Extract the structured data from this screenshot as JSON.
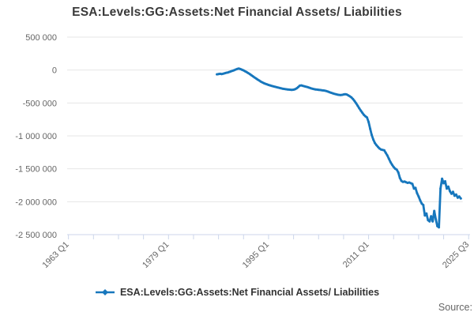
{
  "title": "ESA:Levels:GG:Assets:Net Financial Assets/ Liabilities",
  "footer": {
    "source_label": "Source:"
  },
  "chart_data": {
    "type": "line",
    "title": "ESA:Levels:GG:Assets:Net Financial Assets/ Liabilities",
    "xlabel": "",
    "ylabel": "",
    "grid": "horizontal",
    "legend_position": "bottom-center",
    "colors": {
      "line": "#1777bd",
      "grid": "#e6e6e6",
      "axis": "#ccd6eb",
      "label": "#666666",
      "title": "#3a3a3a"
    },
    "x_axis": {
      "min_year": 1963,
      "tick_interval_years": 4,
      "tick_count": 17,
      "labeled_ticks": [
        {
          "index": 0,
          "label": "1963 Q1"
        },
        {
          "index": 4,
          "label": "1979 Q1"
        },
        {
          "index": 8,
          "label": "1995 Q1"
        },
        {
          "index": 12,
          "label": "2011 Q1"
        },
        {
          "index": 16,
          "label": "2025 Q3"
        }
      ]
    },
    "y_axis": {
      "min": -2500000,
      "max": 500000,
      "tick_values": [
        500000,
        0,
        -500000,
        -1000000,
        -1500000,
        -2000000,
        -2500000
      ],
      "tick_labels": [
        "500 000",
        "0",
        "-500 000",
        "-1 000 000",
        "-1 500 000",
        "-2 000 000",
        "-2 500 000"
      ]
    },
    "series": [
      {
        "name": "ESA:Levels:GG:Assets:Net Financial Assets/ Liabilities",
        "points": [
          [
            1986.75,
            -65000
          ],
          [
            1987,
            -60000
          ],
          [
            1987.25,
            -57000
          ],
          [
            1987.5,
            -62000
          ],
          [
            1987.75,
            -56000
          ],
          [
            1988,
            -48000
          ],
          [
            1988.25,
            -41000
          ],
          [
            1988.5,
            -36000
          ],
          [
            1988.75,
            -28000
          ],
          [
            1989,
            -20000
          ],
          [
            1989.25,
            -11000
          ],
          [
            1989.5,
            -3000
          ],
          [
            1989.75,
            8000
          ],
          [
            1990,
            18000
          ],
          [
            1990.25,
            22000
          ],
          [
            1990.5,
            15000
          ],
          [
            1990.75,
            5000
          ],
          [
            1991,
            -5000
          ],
          [
            1991.25,
            -19000
          ],
          [
            1991.5,
            -32000
          ],
          [
            1991.75,
            -46000
          ],
          [
            1992,
            -61000
          ],
          [
            1992.25,
            -78000
          ],
          [
            1992.5,
            -95000
          ],
          [
            1992.75,
            -112000
          ],
          [
            1993,
            -128000
          ],
          [
            1993.25,
            -144000
          ],
          [
            1993.5,
            -159000
          ],
          [
            1993.75,
            -174000
          ],
          [
            1994,
            -187000
          ],
          [
            1994.25,
            -199000
          ],
          [
            1994.5,
            -209000
          ],
          [
            1994.75,
            -218000
          ],
          [
            1995,
            -226000
          ],
          [
            1995.25,
            -233000
          ],
          [
            1995.5,
            -240000
          ],
          [
            1995.75,
            -247000
          ],
          [
            1996,
            -254000
          ],
          [
            1996.25,
            -260000
          ],
          [
            1996.5,
            -266000
          ],
          [
            1996.75,
            -271000
          ],
          [
            1997,
            -277000
          ],
          [
            1997.25,
            -283000
          ],
          [
            1997.5,
            -287000
          ],
          [
            1997.75,
            -291000
          ],
          [
            1998,
            -294000
          ],
          [
            1998.25,
            -297000
          ],
          [
            1998.5,
            -299000
          ],
          [
            1998.75,
            -301000
          ],
          [
            1999,
            -298000
          ],
          [
            1999.25,
            -291000
          ],
          [
            1999.5,
            -278000
          ],
          [
            1999.75,
            -258000
          ],
          [
            2000,
            -237000
          ],
          [
            2000.25,
            -233000
          ],
          [
            2000.5,
            -240000
          ],
          [
            2000.75,
            -247000
          ],
          [
            2001,
            -253000
          ],
          [
            2001.25,
            -260000
          ],
          [
            2001.5,
            -268000
          ],
          [
            2001.75,
            -276000
          ],
          [
            2002,
            -283000
          ],
          [
            2002.25,
            -289000
          ],
          [
            2002.5,
            -294000
          ],
          [
            2002.75,
            -297000
          ],
          [
            2003,
            -300000
          ],
          [
            2003.25,
            -303000
          ],
          [
            2003.5,
            -306000
          ],
          [
            2003.75,
            -310000
          ],
          [
            2004,
            -314000
          ],
          [
            2004.25,
            -320000
          ],
          [
            2004.5,
            -327000
          ],
          [
            2004.75,
            -336000
          ],
          [
            2005,
            -345000
          ],
          [
            2005.25,
            -353000
          ],
          [
            2005.5,
            -360000
          ],
          [
            2005.75,
            -366000
          ],
          [
            2006,
            -372000
          ],
          [
            2006.25,
            -377000
          ],
          [
            2006.5,
            -380000
          ],
          [
            2006.75,
            -377000
          ],
          [
            2007,
            -371000
          ],
          [
            2007.25,
            -367000
          ],
          [
            2007.5,
            -371000
          ],
          [
            2007.75,
            -384000
          ],
          [
            2008,
            -399000
          ],
          [
            2008.25,
            -416000
          ],
          [
            2008.5,
            -441000
          ],
          [
            2008.75,
            -471000
          ],
          [
            2009,
            -506000
          ],
          [
            2009.25,
            -542000
          ],
          [
            2009.5,
            -580000
          ],
          [
            2009.75,
            -616000
          ],
          [
            2010,
            -650000
          ],
          [
            2010.25,
            -681000
          ],
          [
            2010.5,
            -703000
          ],
          [
            2010.75,
            -722000
          ],
          [
            2011,
            -790000
          ],
          [
            2011.25,
            -893000
          ],
          [
            2011.5,
            -985000
          ],
          [
            2011.75,
            -1055000
          ],
          [
            2012,
            -1108000
          ],
          [
            2012.25,
            -1140000
          ],
          [
            2012.5,
            -1168000
          ],
          [
            2012.75,
            -1192000
          ],
          [
            2013,
            -1208000
          ],
          [
            2013.25,
            -1214000
          ],
          [
            2013.5,
            -1219000
          ],
          [
            2013.75,
            -1258000
          ],
          [
            2014,
            -1298000
          ],
          [
            2014.25,
            -1348000
          ],
          [
            2014.5,
            -1398000
          ],
          [
            2014.75,
            -1438000
          ],
          [
            2015,
            -1472000
          ],
          [
            2015.25,
            -1498000
          ],
          [
            2015.5,
            -1512000
          ],
          [
            2015.75,
            -1556000
          ],
          [
            2016,
            -1638000
          ],
          [
            2016.25,
            -1684000
          ],
          [
            2016.5,
            -1700000
          ],
          [
            2016.75,
            -1694000
          ],
          [
            2017,
            -1704000
          ],
          [
            2017.25,
            -1714000
          ],
          [
            2017.5,
            -1708000
          ],
          [
            2017.75,
            -1719000
          ],
          [
            2018,
            -1730000
          ],
          [
            2018.25,
            -1800000
          ],
          [
            2018.5,
            -1790000
          ],
          [
            2018.75,
            -1870000
          ],
          [
            2019,
            -1920000
          ],
          [
            2019.25,
            -1980000
          ],
          [
            2019.5,
            -2030000
          ],
          [
            2019.75,
            -2050000
          ],
          [
            2020,
            -2210000
          ],
          [
            2020.25,
            -2180000
          ],
          [
            2020.5,
            -2280000
          ],
          [
            2020.75,
            -2300000
          ],
          [
            2021,
            -2220000
          ],
          [
            2021.25,
            -2300000
          ],
          [
            2021.5,
            -2140000
          ],
          [
            2021.75,
            -2270000
          ],
          [
            2022,
            -2370000
          ],
          [
            2022.25,
            -2390000
          ],
          [
            2022.5,
            -1800000
          ],
          [
            2022.75,
            -1650000
          ],
          [
            2023,
            -1720000
          ],
          [
            2023.25,
            -1690000
          ],
          [
            2023.5,
            -1800000
          ],
          [
            2023.75,
            -1770000
          ],
          [
            2024,
            -1840000
          ],
          [
            2024.25,
            -1880000
          ],
          [
            2024.5,
            -1850000
          ],
          [
            2024.75,
            -1910000
          ],
          [
            2025,
            -1890000
          ],
          [
            2025.25,
            -1940000
          ],
          [
            2025.5,
            -1920000
          ],
          [
            2025.75,
            -1950000
          ]
        ]
      }
    ]
  }
}
